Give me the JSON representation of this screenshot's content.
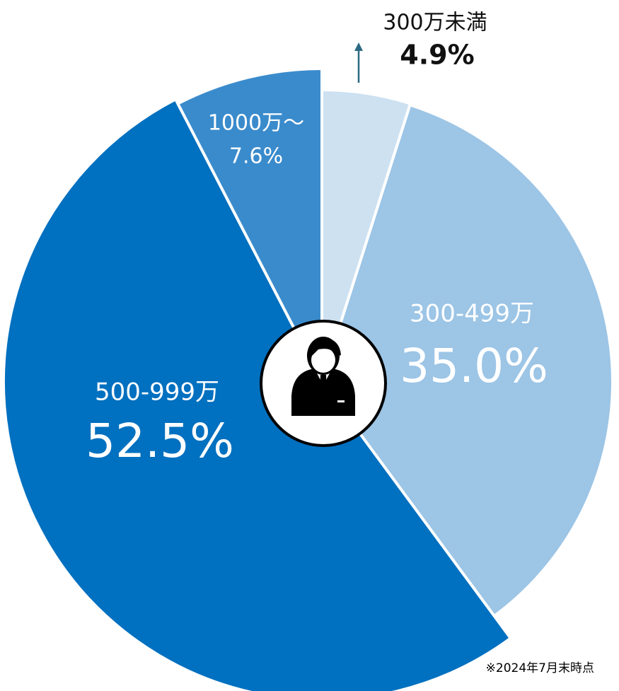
{
  "chart_data": {
    "type": "pie",
    "categories": [
      "300万未満",
      "300-499万",
      "500-999万",
      "1000万～"
    ],
    "values": [
      4.9,
      35.0,
      52.5,
      7.6
    ],
    "value_labels": [
      "4.9%",
      "35.0%",
      "52.5%",
      "7.6%"
    ],
    "colors": [
      "#cde1f1",
      "#9cc5e6",
      "#0070c0",
      "#3a8bcc"
    ],
    "note": "※2024年7月末時点"
  }
}
